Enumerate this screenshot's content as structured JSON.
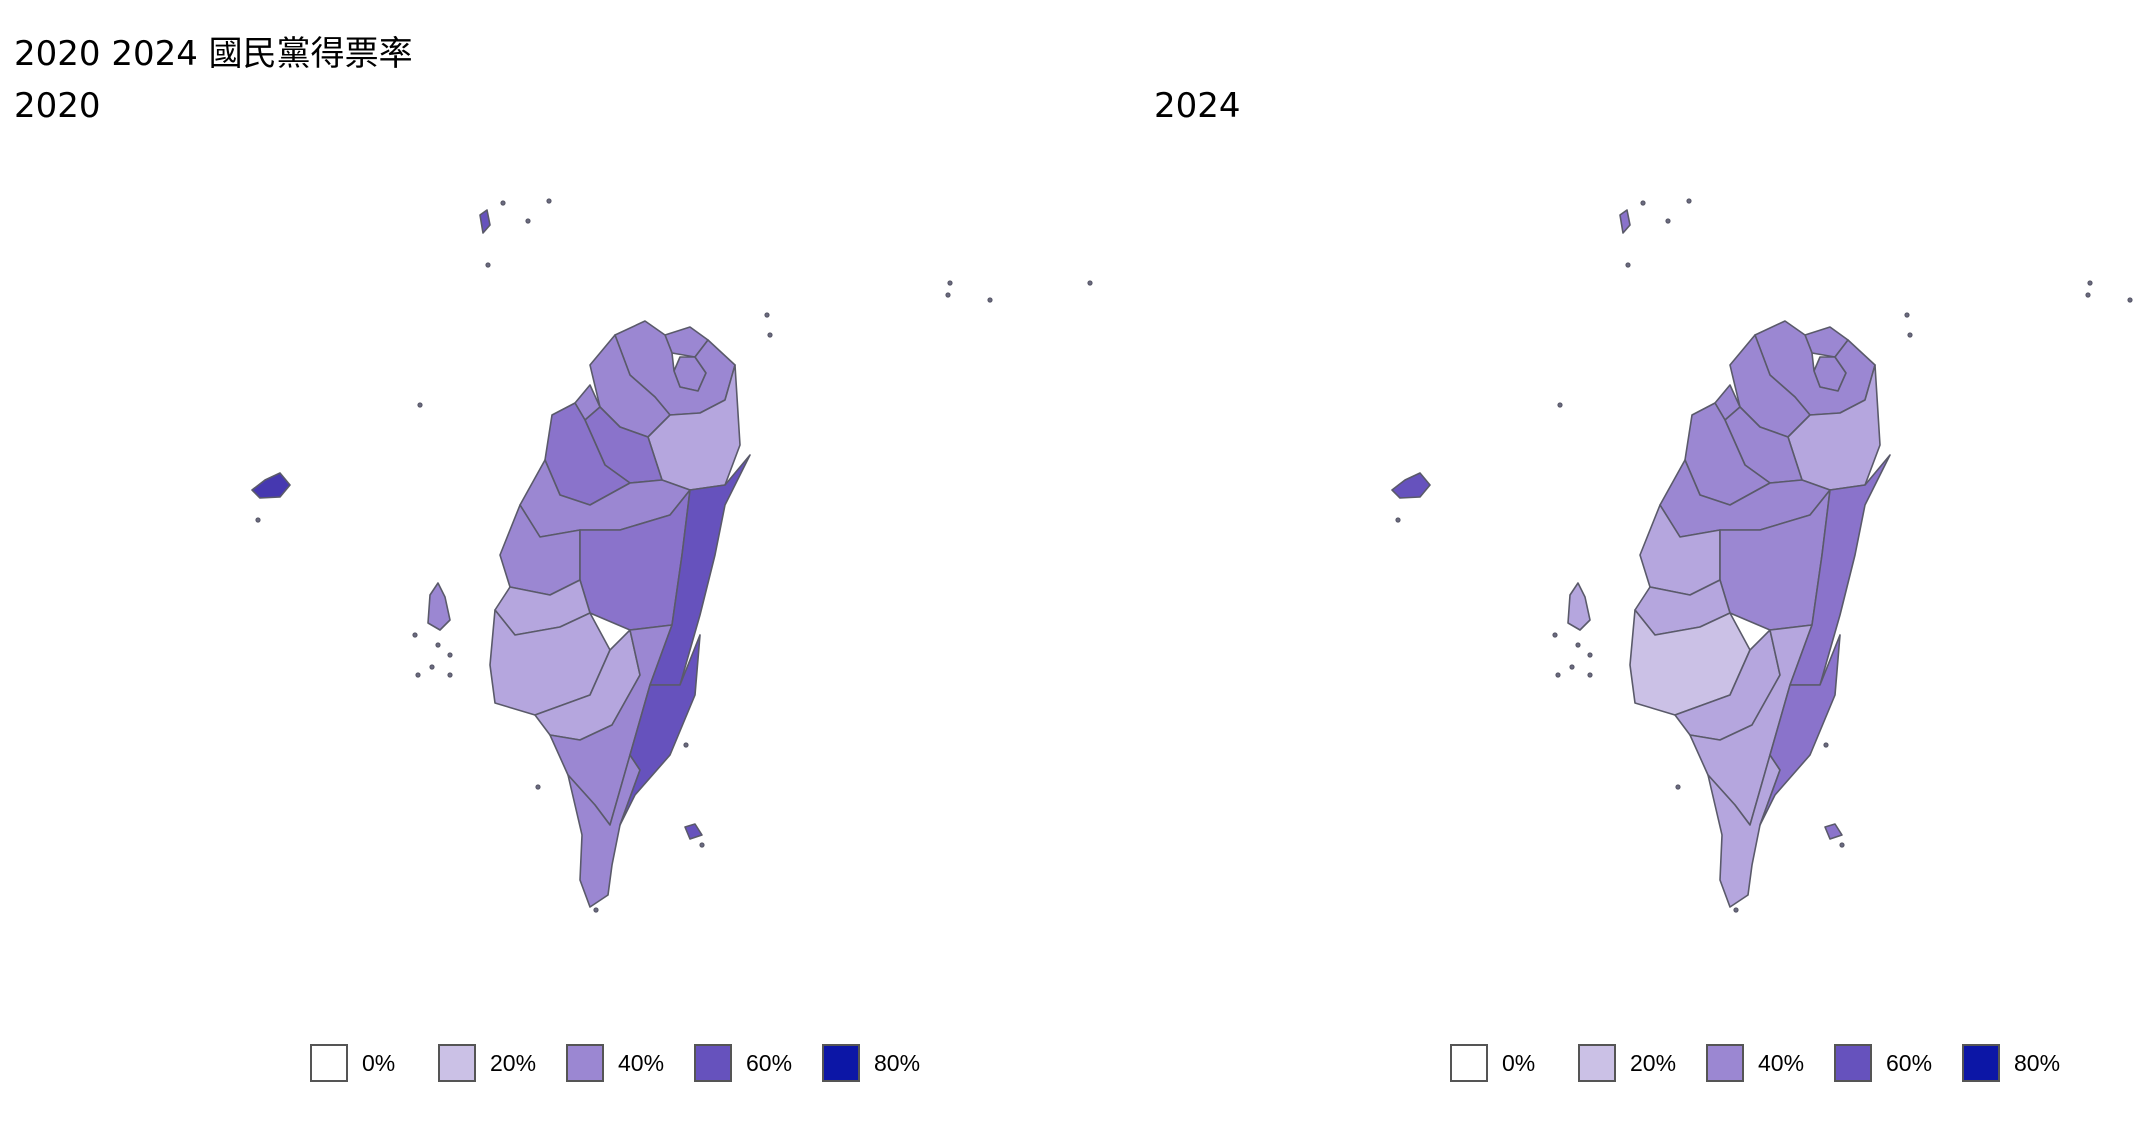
{
  "title": "2020 2024 國民黨得票率",
  "colors": {
    "c0": "#ffffff",
    "c20": "#cbc1e6",
    "c30": "#b5a6de",
    "c40": "#9b87d2",
    "c50": "#8a73cb",
    "c60": "#6652bd",
    "c70": "#4638b0",
    "c80": "#0c16a6"
  },
  "legend": [
    {
      "label": "0%",
      "color": "#ffffff"
    },
    {
      "label": "20%",
      "color": "#cbc1e6"
    },
    {
      "label": "40%",
      "color": "#9b87d2"
    },
    {
      "label": "60%",
      "color": "#6652bd"
    },
    {
      "label": "80%",
      "color": "#0c16a6"
    }
  ],
  "panels": [
    {
      "year": "2020",
      "fills": {
        "keelung": "c40",
        "taipei": "c40",
        "newtaipei": "c40",
        "taoyuan": "c40",
        "hsinchu": "c50",
        "hsinchucity": "c40",
        "miaoli": "c50",
        "yilan": "c30",
        "taichung": "c40",
        "nantou": "c50",
        "changhua": "c40",
        "yunlin": "c30",
        "chiayi": "c30",
        "tainan": "c30",
        "kaohsiung": "c40",
        "pingtung": "c40",
        "hualien": "c60",
        "taitung": "c60",
        "penghu": "c40",
        "kinmen": "c70",
        "lienchiang": "c60",
        "lanyu": "c60"
      }
    },
    {
      "year": "2024",
      "fills": {
        "keelung": "c40",
        "taipei": "c40",
        "newtaipei": "c40",
        "taoyuan": "c40",
        "hsinchu": "c40",
        "hsinchucity": "c40",
        "miaoli": "c40",
        "yilan": "c30",
        "taichung": "c40",
        "nantou": "c40",
        "changhua": "c30",
        "yunlin": "c30",
        "chiayi": "c20",
        "tainan": "c30",
        "kaohsiung": "c30",
        "pingtung": "c30",
        "hualien": "c50",
        "taitung": "c50",
        "penghu": "c30",
        "kinmen": "c60",
        "lienchiang": "c50",
        "lanyu": "c50"
      }
    }
  ]
}
